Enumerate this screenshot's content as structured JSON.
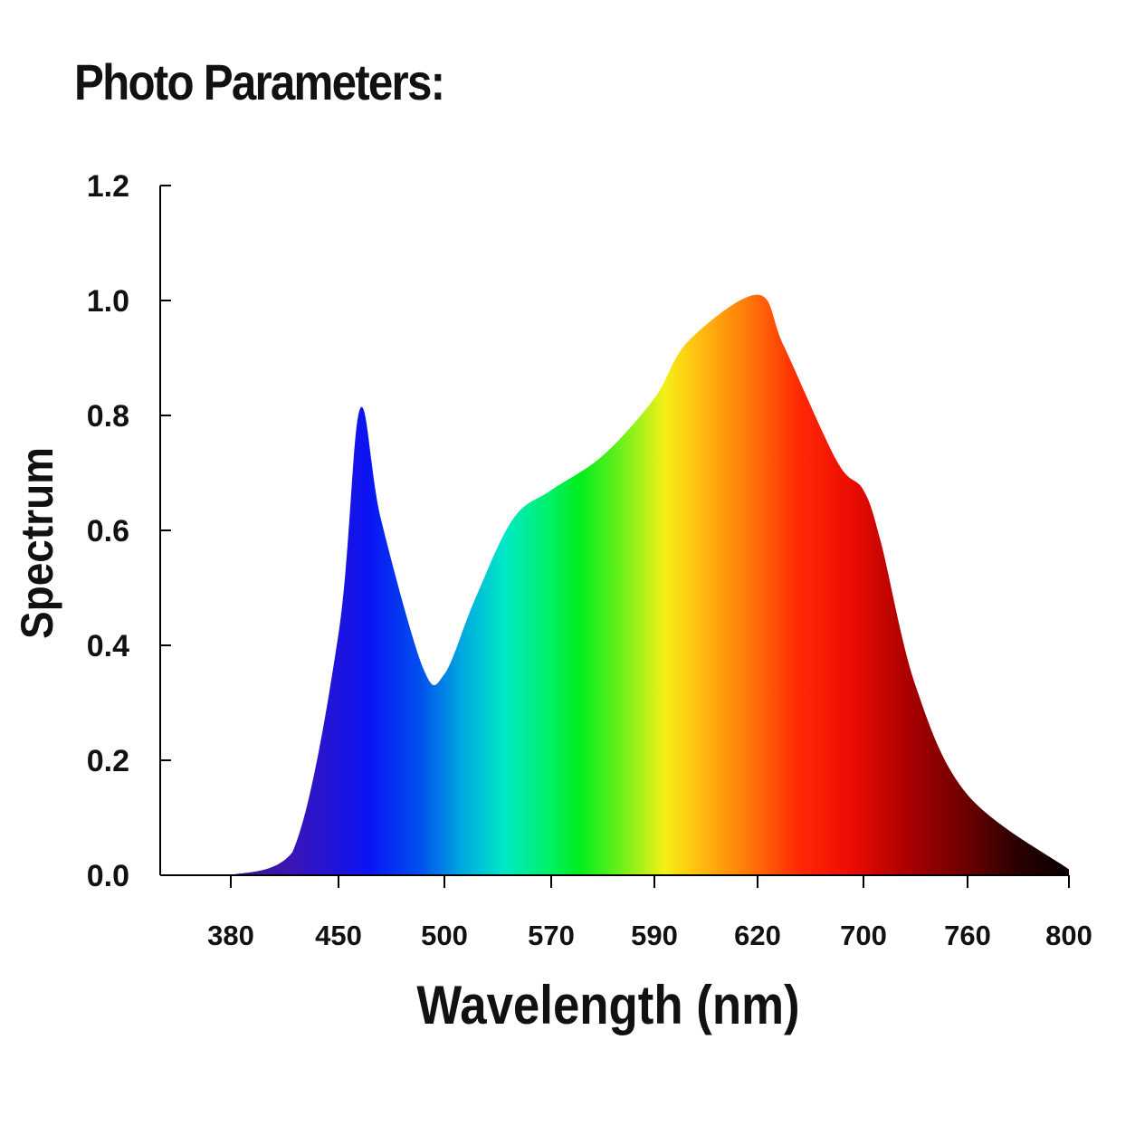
{
  "title": "Photo Parameters:",
  "chart_data": {
    "type": "area",
    "xlabel": "Wavelength (nm)",
    "ylabel": "Spectrum",
    "ylim": [
      0,
      1.2
    ],
    "yticks": [
      "0.0",
      "0.2",
      "0.4",
      "0.6",
      "0.8",
      "1.0",
      "1.2"
    ],
    "x_categories": [
      "380",
      "450",
      "500",
      "570",
      "590",
      "620",
      "700",
      "760",
      "800"
    ],
    "x_axis_note": "categorical tick labels, unevenly spaced values at equal intervals",
    "fill": "visible spectrum color gradient (violet → blue → cyan → green → yellow → orange → red → dark red → black)",
    "grid": false,
    "series": [
      {
        "points": [
          [
            "380",
            0.0
          ],
          [
            "420",
            0.04
          ],
          [
            "450",
            0.42
          ],
          [
            "460",
            0.81
          ],
          [
            "470",
            0.62
          ],
          [
            "490",
            0.36
          ],
          [
            "500",
            0.35
          ],
          [
            "520",
            0.48
          ],
          [
            "545",
            0.62
          ],
          [
            "570",
            0.67
          ],
          [
            "580",
            0.73
          ],
          [
            "590",
            0.83
          ],
          [
            "600",
            0.93
          ],
          [
            "620",
            1.01
          ],
          [
            "640",
            0.92
          ],
          [
            "680",
            0.72
          ],
          [
            "700",
            0.67
          ],
          [
            "710",
            0.58
          ],
          [
            "730",
            0.33
          ],
          [
            "760",
            0.14
          ],
          [
            "800",
            0.01
          ]
        ]
      }
    ]
  }
}
